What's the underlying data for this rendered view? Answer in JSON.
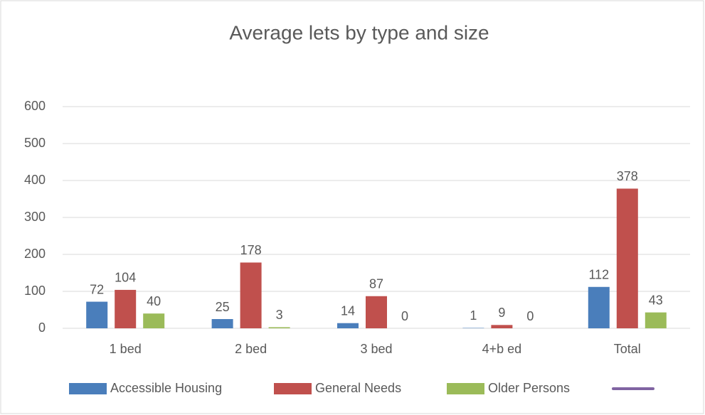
{
  "chart_data": {
    "type": "bar",
    "title": "Average lets by type and size",
    "categories": [
      "1 bed",
      "2 bed",
      "3 bed",
      "4+b ed",
      "Total"
    ],
    "series": [
      {
        "name": "Accessible Housing",
        "color": "#4a7ebb",
        "values": [
          72,
          25,
          14,
          1,
          112
        ]
      },
      {
        "name": "General Needs",
        "color": "#c0504d",
        "values": [
          104,
          178,
          87,
          9,
          378
        ]
      },
      {
        "name": "Older Persons",
        "color": "#9bbb59",
        "values": [
          40,
          3,
          0,
          0,
          43
        ]
      },
      {
        "type": "line",
        "color": "#8064a2",
        "values": [
          null,
          null,
          null,
          null,
          null
        ]
      }
    ],
    "ylim": [
      0,
      600
    ],
    "yticks": [
      0,
      100,
      200,
      300,
      400,
      500,
      600
    ],
    "grid": true,
    "legend": "bottom"
  }
}
